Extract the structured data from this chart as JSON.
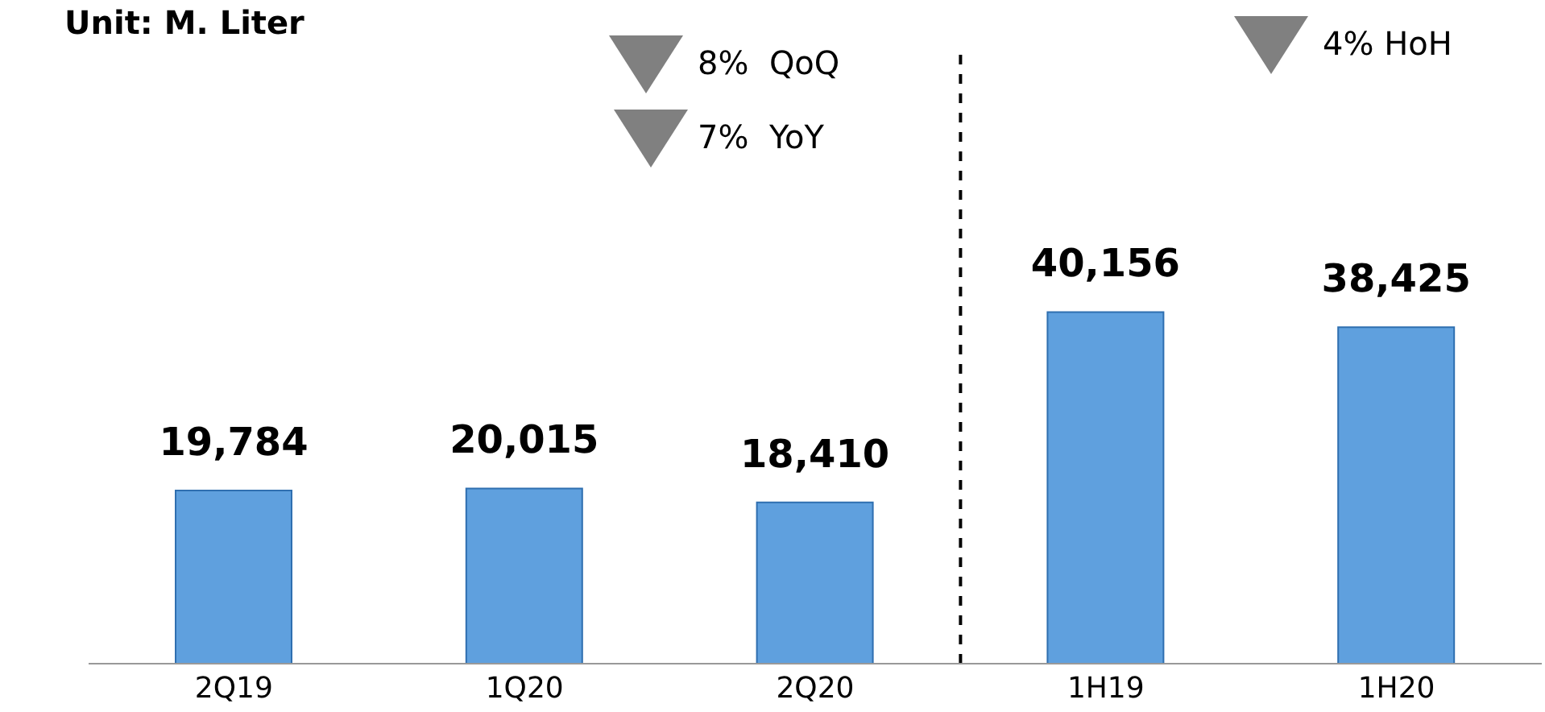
{
  "chart_data": {
    "type": "bar",
    "title": "Unit: M. Liter",
    "categories": [
      "2Q19",
      "1Q20",
      "2Q20",
      "1H19",
      "1H20"
    ],
    "values": [
      19784,
      20015,
      18410,
      40156,
      38425
    ],
    "value_labels": [
      "19,784",
      "20,015",
      "18,410",
      "40,156",
      "38,425"
    ],
    "color": "#5fa0de",
    "annotations": [
      "8%  QoQ",
      "7%  YoY",
      "4% HoH"
    ]
  }
}
